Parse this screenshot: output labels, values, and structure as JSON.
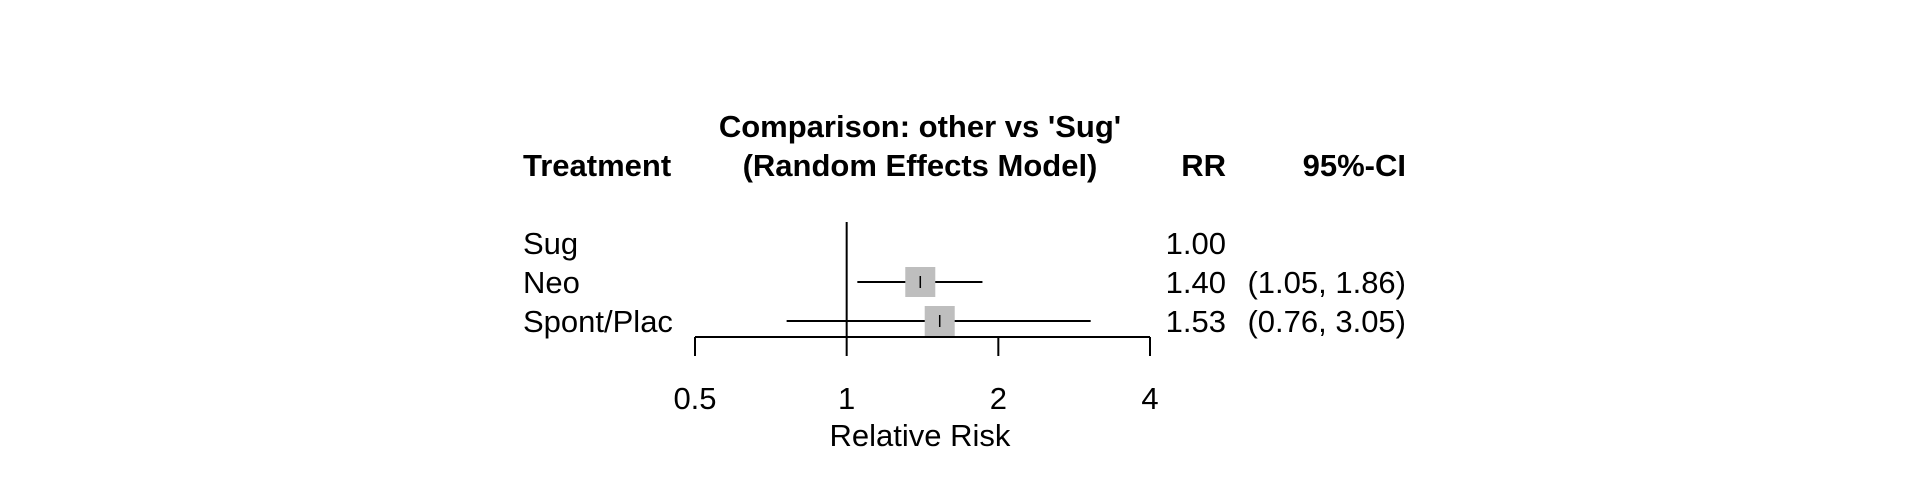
{
  "chart_data": {
    "type": "forest",
    "title": "Comparison: other vs 'Sug'",
    "subtitle": "(Random Effects Model)",
    "column_headers": {
      "treatment": "Treatment",
      "estimate": "RR",
      "ci": "95%-CI"
    },
    "xlabel": "Relative Risk",
    "x_scale": "log",
    "x_ticks": [
      0.5,
      1,
      2,
      4
    ],
    "x_tick_labels": [
      "0.5",
      "1",
      "2",
      "4"
    ],
    "reference_line": 1,
    "rows": [
      {
        "treatment": "Sug",
        "rr": 1.0,
        "rr_label": "1.00",
        "lower": null,
        "upper": null,
        "ci_label": ""
      },
      {
        "treatment": "Neo",
        "rr": 1.4,
        "rr_label": "1.40",
        "lower": 1.05,
        "upper": 1.86,
        "ci_label": "(1.05, 1.86)"
      },
      {
        "treatment": "Spont/Plac",
        "rr": 1.53,
        "rr_label": "1.53",
        "lower": 0.76,
        "upper": 3.05,
        "ci_label": "(0.76, 3.05)"
      }
    ],
    "colors": {
      "box": "#bebebe",
      "line": "#000000"
    }
  }
}
